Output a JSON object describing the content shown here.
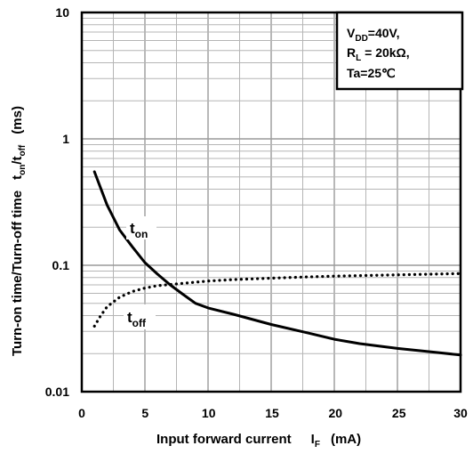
{
  "chart_data": {
    "type": "line",
    "xlabel": "Input forward current",
    "xlabel_symbol": "I",
    "xlabel_symbol_sub": "F",
    "xlabel_unit": "(mA)",
    "ylabel": "Turn-on time/Turn-off time",
    "ylabel_sym1": "t",
    "ylabel_sym1_sub": "on",
    "ylabel_sep": "/t",
    "ylabel_sym2_sub": "off",
    "ylabel_unit": "(ms)",
    "xlim": [
      0,
      30
    ],
    "ylim": [
      0.01,
      10
    ],
    "yscale": "log",
    "grid": true,
    "x_ticks": [
      "0",
      "5",
      "10",
      "15",
      "20",
      "25",
      "30"
    ],
    "y_ticks": [
      "0.01",
      "0.1",
      "1",
      "10"
    ],
    "conditions": {
      "line1_main": "V",
      "line1_sub": "DD",
      "line1_rest": "=40V,",
      "line2_main": "R",
      "line2_sub": "L",
      "line2_rest": " = 20kΩ,",
      "line3": "Ta=25℃",
      "placement": "top-right"
    },
    "series": [
      {
        "name": "t",
        "name_sub": "on",
        "style": "solid",
        "x": [
          1,
          2,
          3,
          4,
          5,
          6,
          7,
          8,
          9,
          10,
          12,
          15,
          18,
          20,
          22,
          25,
          28,
          30
        ],
        "y": [
          0.55,
          0.3,
          0.19,
          0.14,
          0.105,
          0.085,
          0.07,
          0.059,
          0.05,
          0.046,
          0.041,
          0.034,
          0.029,
          0.026,
          0.024,
          0.022,
          0.0205,
          0.0195
        ]
      },
      {
        "name": "t",
        "name_sub": "off",
        "style": "dotted",
        "x": [
          1,
          1.5,
          2,
          3,
          4,
          5,
          6,
          8,
          10,
          12,
          15,
          18,
          20,
          25,
          30
        ],
        "y": [
          0.033,
          0.04,
          0.047,
          0.056,
          0.062,
          0.066,
          0.069,
          0.072,
          0.075,
          0.077,
          0.079,
          0.081,
          0.082,
          0.084,
          0.086
        ]
      }
    ]
  }
}
